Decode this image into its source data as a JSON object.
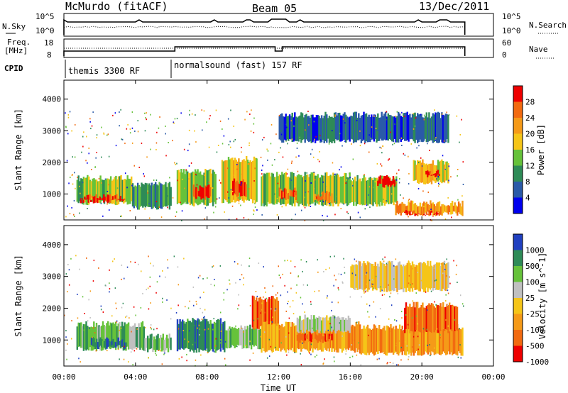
{
  "header": {
    "station": "McMurdo (fitACF)",
    "beam": "Beam 05",
    "date": "13/Dec/2011"
  },
  "sky_panel": {
    "left_label": "N.Sky",
    "right_label": "N.Search",
    "left_ticks": [
      "10^5",
      "10^0"
    ],
    "right_ticks": [
      "10^5",
      "10^0"
    ]
  },
  "freq_panel": {
    "left_label_line1": "Freq.",
    "left_label_line2": "[MHz]",
    "right_label": "Nave",
    "left_ticks": [
      "18",
      "8"
    ],
    "right_ticks": [
      "60",
      "0"
    ]
  },
  "cpid": {
    "label": "CPID",
    "segments": [
      {
        "name": "themis 3300 RF",
        "start_hour": 0.1,
        "end_hour": 6.0
      },
      {
        "name": "normalsound (fast) 157 RF",
        "start_hour": 6.0,
        "end_hour": 22.4
      }
    ]
  },
  "colors": {
    "power_scale": [
      "#0000ee",
      "#2a5aa8",
      "#2e8b57",
      "#66c23a",
      "#f5c518",
      "#f59a18",
      "#f26a10",
      "#ee0000"
    ],
    "velocity_scale": [
      "#2040c0",
      "#2e8b57",
      "#66c23a",
      "#c0c0c0",
      "#f5c518",
      "#f59a18",
      "#f26a10",
      "#ee0000"
    ]
  },
  "chart_data": [
    {
      "type": "heatmap",
      "name": "power",
      "xlabel": "",
      "ylabel": "Slant Range [km]",
      "xlim": [
        0,
        24
      ],
      "ylim": [
        180,
        4600
      ],
      "yticks": [
        "1000",
        "2000",
        "3000",
        "4000"
      ],
      "colorbar_label": "Power [dB]",
      "colorbar_ticks": [
        "4",
        "8",
        "12",
        "16",
        "20",
        "24",
        "28"
      ],
      "colorbar_range": [
        0,
        30
      ],
      "bands": [
        {
          "t0": 0.7,
          "t1": 3.8,
          "r_lo": 650,
          "r_hi": 1600,
          "level": 3
        },
        {
          "t0": 0.9,
          "t1": 3.4,
          "r_lo": 700,
          "r_hi": 1000,
          "level": 7
        },
        {
          "t0": 3.8,
          "t1": 6.0,
          "r_lo": 500,
          "r_hi": 1400,
          "level": 2
        },
        {
          "t0": 6.3,
          "t1": 8.5,
          "r_lo": 600,
          "r_hi": 1800,
          "level": 3
        },
        {
          "t0": 7.2,
          "t1": 8.2,
          "r_lo": 800,
          "r_hi": 1300,
          "level": 7
        },
        {
          "t0": 8.8,
          "t1": 10.8,
          "r_lo": 700,
          "r_hi": 2200,
          "level": 4
        },
        {
          "t0": 9.4,
          "t1": 10.2,
          "r_lo": 900,
          "r_hi": 1500,
          "level": 7
        },
        {
          "t0": 11.0,
          "t1": 16.0,
          "r_lo": 600,
          "r_hi": 1700,
          "level": 3
        },
        {
          "t0": 12.0,
          "t1": 13.0,
          "r_lo": 800,
          "r_hi": 1200,
          "level": 6
        },
        {
          "t0": 14.0,
          "t1": 15.0,
          "r_lo": 700,
          "r_hi": 1100,
          "level": 6
        },
        {
          "t0": 16.0,
          "t1": 18.6,
          "r_lo": 600,
          "r_hi": 1600,
          "level": 3
        },
        {
          "t0": 17.5,
          "t1": 18.5,
          "r_lo": 1200,
          "r_hi": 1600,
          "level": 7
        },
        {
          "t0": 18.5,
          "t1": 22.3,
          "r_lo": 300,
          "r_hi": 800,
          "level": 5
        },
        {
          "t0": 19.0,
          "t1": 21.0,
          "r_lo": 300,
          "r_hi": 500,
          "level": 7
        },
        {
          "t0": 19.5,
          "t1": 21.5,
          "r_lo": 1300,
          "r_hi": 2100,
          "level": 4
        },
        {
          "t0": 20.2,
          "t1": 21.0,
          "r_lo": 1500,
          "r_hi": 1800,
          "level": 7
        },
        {
          "t0": 12.0,
          "t1": 21.5,
          "r_lo": 2600,
          "r_hi": 3600,
          "level": 1
        }
      ]
    },
    {
      "type": "heatmap",
      "name": "velocity",
      "xlabel": "Time UT",
      "ylabel": "Slant Range [km]",
      "xlim": [
        0,
        24
      ],
      "ylim": [
        180,
        4600
      ],
      "xticks": [
        "00:00",
        "04:00",
        "08:00",
        "12:00",
        "16:00",
        "20:00",
        "00:00"
      ],
      "yticks": [
        "1000",
        "2000",
        "3000",
        "4000"
      ],
      "colorbar_label": "Velocity [m s^-1]",
      "colorbar_ticks": [
        "1000",
        "500",
        "100",
        "25",
        "-25",
        "-100",
        "-500",
        "-1000"
      ],
      "bands": [
        {
          "t0": 0.7,
          "t1": 4.5,
          "r_lo": 650,
          "r_hi": 1600,
          "level": 2
        },
        {
          "t0": 1.5,
          "t1": 3.5,
          "r_lo": 700,
          "r_hi": 1100,
          "level": 1
        },
        {
          "t0": 4.5,
          "t1": 6.0,
          "r_lo": 600,
          "r_hi": 1200,
          "level": 2
        },
        {
          "t0": 6.3,
          "t1": 9.0,
          "r_lo": 600,
          "r_hi": 1700,
          "level": 1
        },
        {
          "t0": 9.0,
          "t1": 11.0,
          "r_lo": 700,
          "r_hi": 1500,
          "level": 2
        },
        {
          "t0": 10.5,
          "t1": 12.0,
          "r_lo": 1300,
          "r_hi": 2400,
          "level": 6
        },
        {
          "t0": 11.0,
          "t1": 16.5,
          "r_lo": 600,
          "r_hi": 1600,
          "level": 5
        },
        {
          "t0": 13.0,
          "t1": 15.0,
          "r_lo": 900,
          "r_hi": 1300,
          "level": 6
        },
        {
          "t0": 16.5,
          "t1": 22.3,
          "r_lo": 500,
          "r_hi": 1500,
          "level": 5
        },
        {
          "t0": 19.0,
          "t1": 22.0,
          "r_lo": 1200,
          "r_hi": 2200,
          "level": 6
        },
        {
          "t0": 13.0,
          "t1": 16.0,
          "r_lo": 1200,
          "r_hi": 1800,
          "level": 3
        },
        {
          "t0": 16.0,
          "t1": 21.5,
          "r_lo": 2500,
          "r_hi": 3500,
          "level": 4
        }
      ]
    }
  ]
}
